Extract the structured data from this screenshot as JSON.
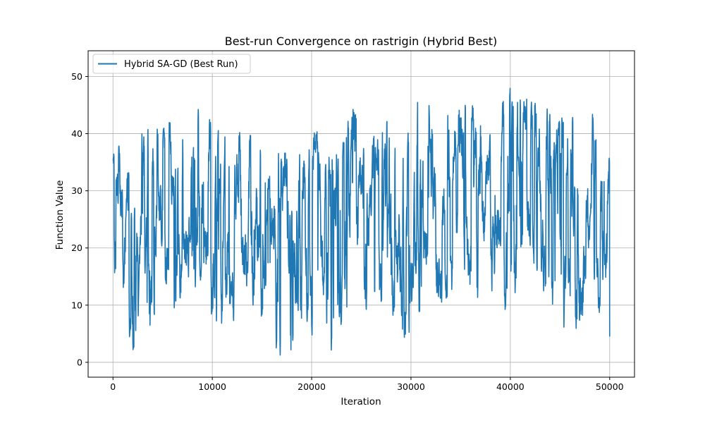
{
  "chart_data": {
    "type": "line",
    "title": "Best-run Convergence on rastrigin (Hybrid Best)",
    "xlabel": "Iteration",
    "ylabel": "Function Value",
    "xlim": [
      -2500,
      52500
    ],
    "ylim": [
      -2.6,
      54.5
    ],
    "xticks": [
      0,
      10000,
      20000,
      30000,
      40000,
      50000
    ],
    "yticks": [
      0,
      10,
      20,
      30,
      40,
      50
    ],
    "grid": true,
    "legend_position": "top-left",
    "series": [
      {
        "name": "Hybrid SA-GD (Best Run)",
        "color": "#1f77b4",
        "n_iterations": 50000,
        "envelope_x": [
          0,
          1000,
          2000,
          3000,
          4000,
          5000,
          6000,
          7000,
          8000,
          9000,
          10000,
          11000,
          12000,
          13000,
          14000,
          15000,
          16000,
          17000,
          18000,
          19000,
          20000,
          21000,
          22000,
          23000,
          24000,
          25000,
          26000,
          27000,
          28000,
          29000,
          30000,
          31000,
          32000,
          33000,
          34000,
          35000,
          36000,
          37000,
          38000,
          39000,
          40000,
          41000,
          42000,
          43000,
          44000,
          45000,
          46000,
          47000,
          48000,
          49000,
          50000
        ],
        "upper": [
          36.5,
          39,
          41.5,
          41,
          40.5,
          42,
          43.5,
          43.5,
          45.5,
          45,
          44,
          41,
          40,
          40.5,
          40,
          40.5,
          37,
          37,
          36.5,
          39.5,
          40,
          41,
          40.5,
          42,
          45,
          43,
          40,
          40.5,
          44,
          39,
          48,
          45.5,
          47,
          46,
          47,
          45,
          45.5,
          46.5,
          44,
          47,
          51.5,
          52,
          45.5,
          48.5,
          44.5,
          43.5,
          42,
          48,
          45,
          46,
          41.5
        ],
        "lower": [
          17,
          8.5,
          2,
          4.5,
          6.5,
          9.5,
          2.5,
          4.5,
          10,
          15,
          4.5,
          4,
          7,
          8.5,
          10.5,
          1.5,
          2,
          1,
          0,
          2.5,
          2,
          2,
          1.5,
          3,
          8.5,
          8,
          5.5,
          6,
          8,
          4,
          4.5,
          9,
          10.5,
          8.5,
          13,
          9.5,
          11,
          7.5,
          12.5,
          8.5,
          9,
          9.5,
          10,
          13,
          10,
          6.5,
          4.5,
          5,
          12.5,
          8.5,
          4.5
        ],
        "start_value": 36.5,
        "end_value": 4.5
      }
    ]
  }
}
